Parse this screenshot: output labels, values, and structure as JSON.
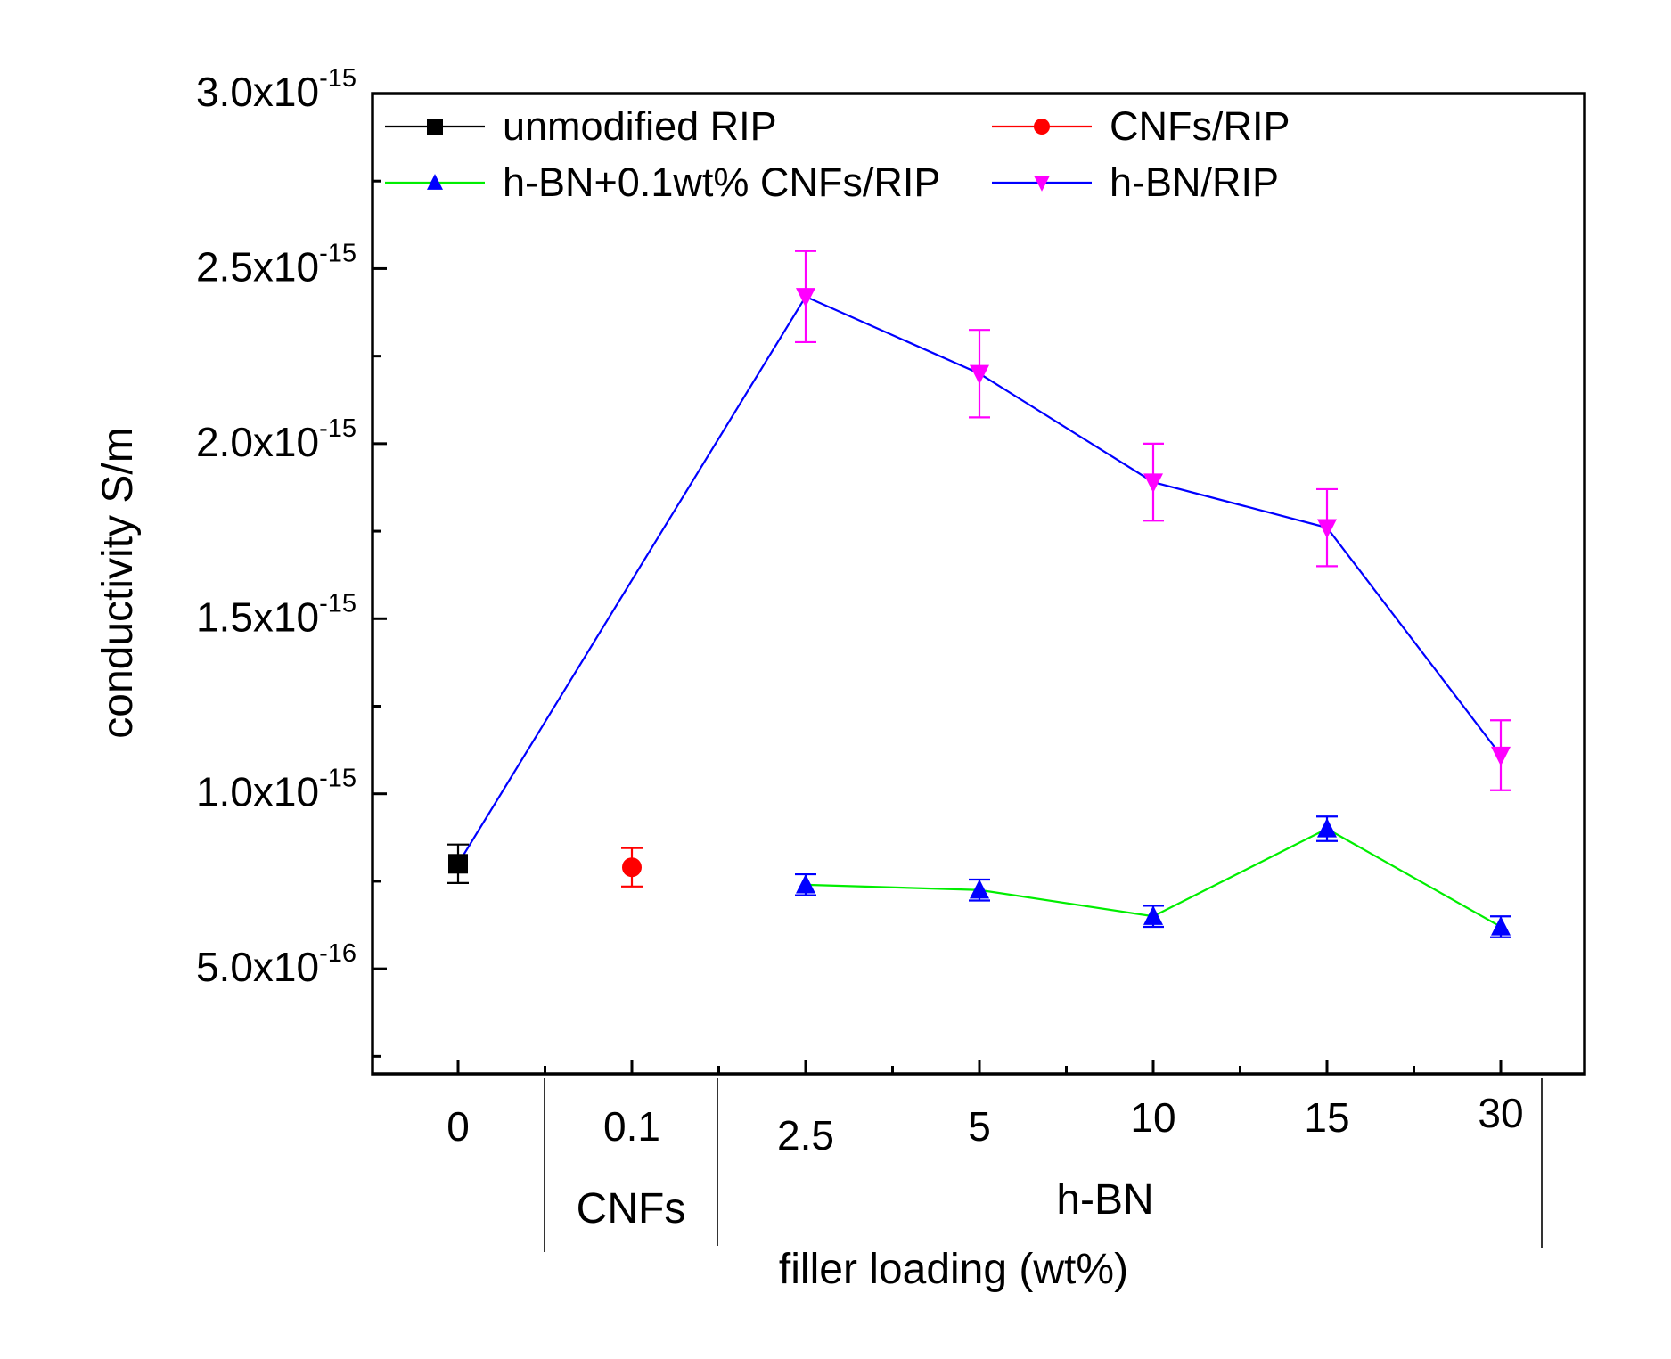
{
  "chart_data": {
    "type": "line",
    "xlabel": "filler loading (wt%)",
    "ylabel": "conductivity S/m",
    "ylim": [
      2e-16,
      3e-15
    ],
    "categories": [
      "0",
      "0.1",
      "2.5",
      "5",
      "10",
      "15",
      "30"
    ],
    "y_ticks": [
      {
        "value": 5e-16,
        "mantissa": "5.0x10",
        "exp": "-16"
      },
      {
        "value": 1e-15,
        "mantissa": "1.0x10",
        "exp": "-15"
      },
      {
        "value": 1.5e-15,
        "mantissa": "1.5x10",
        "exp": "-15"
      },
      {
        "value": 2e-15,
        "mantissa": "2.0x10",
        "exp": "-15"
      },
      {
        "value": 2.5e-15,
        "mantissa": "2.5x10",
        "exp": "-15"
      },
      {
        "value": 3e-15,
        "mantissa": "3.0x10",
        "exp": "-15"
      }
    ],
    "groups": [
      {
        "label": "CNFs",
        "categories": [
          "0.1"
        ]
      },
      {
        "label": "h-BN",
        "categories": [
          "2.5",
          "5",
          "10",
          "15",
          "30"
        ]
      }
    ],
    "series": [
      {
        "name": "unmodified RIP",
        "color": "#000000",
        "marker": "square",
        "points": [
          {
            "x": "0",
            "y": 8e-16,
            "err": 5.5e-17
          }
        ]
      },
      {
        "name": "CNFs/RIP",
        "color": "#ff0000",
        "marker": "circle",
        "points": [
          {
            "x": "0.1",
            "y": 7.9e-16,
            "err": 5.5e-17
          }
        ]
      },
      {
        "name": "h-BN+0.1wt% CNFs/RIP",
        "color": "#00ee00",
        "marker_color": "#0000ff",
        "marker": "triangle-up",
        "points": [
          {
            "x": "2.5",
            "y": 7.4e-16,
            "err": 3e-17
          },
          {
            "x": "5",
            "y": 7.25e-16,
            "err": 3e-17
          },
          {
            "x": "10",
            "y": 6.5e-16,
            "err": 3e-17
          },
          {
            "x": "15",
            "y": 9e-16,
            "err": 3.5e-17
          },
          {
            "x": "30",
            "y": 6.2e-16,
            "err": 3e-17
          }
        ]
      },
      {
        "name": "h-BN/RIP",
        "color": "#0000ff",
        "marker_color": "#ff00ff",
        "marker": "triangle-down",
        "line_from": {
          "x": "0",
          "y": 8e-16
        },
        "points": [
          {
            "x": "2.5",
            "y": 2.42e-15,
            "err": 1.3e-16
          },
          {
            "x": "5",
            "y": 2.2e-15,
            "err": 1.25e-16
          },
          {
            "x": "10",
            "y": 1.89e-15,
            "err": 1.1e-16
          },
          {
            "x": "15",
            "y": 1.76e-15,
            "err": 1.1e-16
          },
          {
            "x": "30",
            "y": 1.11e-15,
            "err": 1e-16
          }
        ]
      }
    ]
  }
}
